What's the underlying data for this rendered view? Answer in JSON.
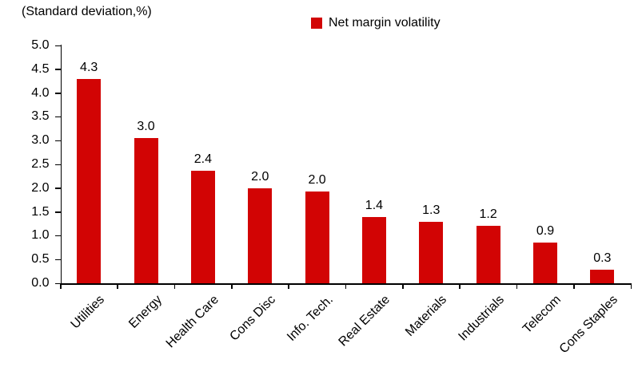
{
  "chart_data": {
    "type": "bar",
    "title": "(Standard deviation,%)",
    "legend_label": "Net margin volatility",
    "legend_position": "top-center",
    "grid": false,
    "categories": [
      "Utilities",
      "Energy",
      "Health Care",
      "Cons Disc",
      "Info. Tech.",
      "Real Estate",
      "Materials",
      "Industrials",
      "Telecom",
      "Cons Staples"
    ],
    "values": [
      4.3,
      3.0,
      2.4,
      2.0,
      2.0,
      1.4,
      1.3,
      1.2,
      0.9,
      0.3
    ],
    "value_labels": [
      "4.3",
      "3.0",
      "2.4",
      "2.0",
      "2.0",
      "1.4",
      "1.3",
      "1.2",
      "0.9",
      "0.3"
    ],
    "values_render": [
      4.3,
      3.05,
      2.36,
      1.99,
      1.93,
      1.4,
      1.3,
      1.21,
      0.86,
      0.28
    ],
    "xlabel": "",
    "ylabel": "(Standard deviation,%)",
    "ylim": [
      0,
      5
    ],
    "ytick_step": 0.5,
    "ytick_labels": [
      "0.0",
      "0.5",
      "1.0",
      "1.5",
      "2.0",
      "2.5",
      "3.0",
      "3.5",
      "4.0",
      "4.5",
      "5.0"
    ],
    "bar_color": "#D20404",
    "axis_color": "#000000",
    "text_color": "#000000",
    "background_color": "#FFFFFF"
  }
}
